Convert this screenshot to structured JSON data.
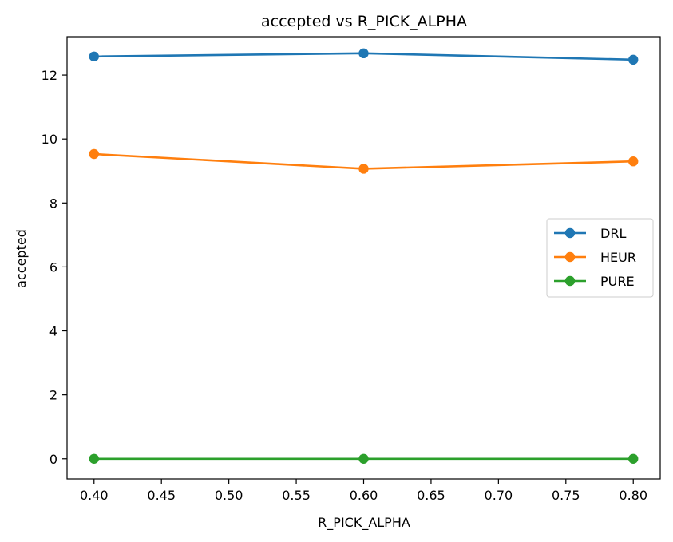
{
  "chart_data": {
    "type": "line",
    "title": "accepted vs R_PICK_ALPHA",
    "xlabel": "R_PICK_ALPHA",
    "ylabel": "accepted",
    "x": [
      0.4,
      0.6,
      0.8
    ],
    "xlim": [
      0.38,
      0.82
    ],
    "ylim": [
      -0.63,
      13.2
    ],
    "xticks": [
      "0.40",
      "0.45",
      "0.50",
      "0.55",
      "0.60",
      "0.65",
      "0.70",
      "0.75",
      "0.80"
    ],
    "yticks": [
      "0",
      "2",
      "4",
      "6",
      "8",
      "10",
      "12"
    ],
    "grid": false,
    "legend_position": "center-right",
    "series": [
      {
        "name": "DRL",
        "color": "#1f77b4",
        "values": [
          12.58,
          12.68,
          12.48
        ]
      },
      {
        "name": "HEUR",
        "color": "#ff7f0e",
        "values": [
          9.53,
          9.07,
          9.3
        ]
      },
      {
        "name": "PURE",
        "color": "#2ca02c",
        "values": [
          0.0,
          0.0,
          0.0
        ]
      }
    ]
  }
}
